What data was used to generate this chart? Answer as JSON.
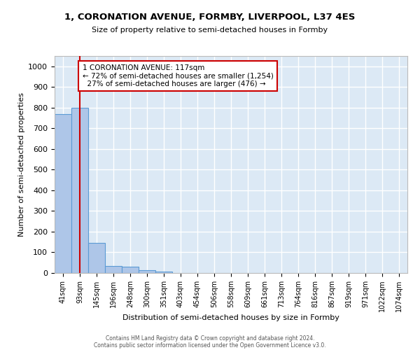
{
  "title1": "1, CORONATION AVENUE, FORMBY, LIVERPOOL, L37 4ES",
  "title2": "Size of property relative to semi-detached houses in Formby",
  "xlabel": "Distribution of semi-detached houses by size in Formby",
  "ylabel": "Number of semi-detached properties",
  "bins": [
    "41sqm",
    "93sqm",
    "145sqm",
    "196sqm",
    "248sqm",
    "300sqm",
    "351sqm",
    "403sqm",
    "454sqm",
    "506sqm",
    "558sqm",
    "609sqm",
    "661sqm",
    "713sqm",
    "764sqm",
    "816sqm",
    "867sqm",
    "919sqm",
    "971sqm",
    "1022sqm",
    "1074sqm"
  ],
  "values": [
    770,
    800,
    145,
    35,
    30,
    13,
    8,
    0,
    0,
    0,
    0,
    0,
    0,
    0,
    0,
    0,
    0,
    0,
    0,
    0,
    0
  ],
  "property_line_bin": 1,
  "property_sqm": "117sqm",
  "pct_smaller": 72,
  "n_smaller": 1254,
  "pct_larger": 27,
  "n_larger": 476,
  "bar_color": "#aec6e8",
  "bar_edge_color": "#5b9bd5",
  "line_color": "#cc0000",
  "annotation_box_color": "#cc0000",
  "background_color": "#dce9f5",
  "grid_color": "#ffffff",
  "footer1": "Contains HM Land Registry data © Crown copyright and database right 2024.",
  "footer2": "Contains public sector information licensed under the Open Government Licence v3.0.",
  "ylim": [
    0,
    1050
  ],
  "yticks": [
    0,
    100,
    200,
    300,
    400,
    500,
    600,
    700,
    800,
    900,
    1000
  ]
}
